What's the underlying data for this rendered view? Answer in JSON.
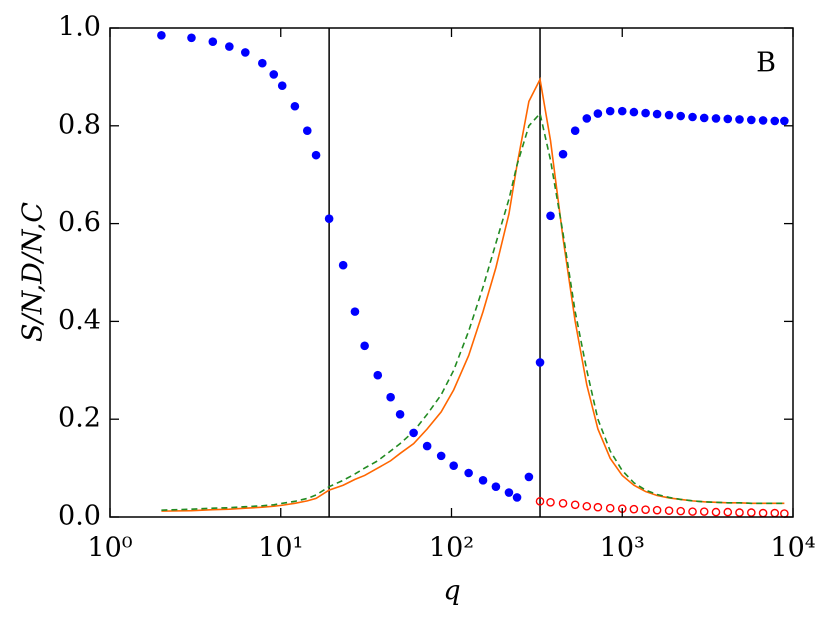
{
  "chart_data": {
    "type": "scatter",
    "annotation": "B",
    "xlabel": "q",
    "ylabel": "S/N,D/N,C",
    "xscale": "log",
    "xlim": [
      1,
      10000
    ],
    "ylim": [
      0,
      1
    ],
    "xticks": [
      {
        "value": 1,
        "label": "10⁰"
      },
      {
        "value": 10,
        "label": "10¹"
      },
      {
        "value": 100,
        "label": "10²"
      },
      {
        "value": 1000,
        "label": "10³"
      },
      {
        "value": 10000,
        "label": "10⁴"
      }
    ],
    "yticks": [
      {
        "value": 0,
        "label": "0.0"
      },
      0.2,
      0.4,
      0.6,
      0.8,
      {
        "value": 1,
        "label": "1.0"
      }
    ],
    "vlines": [
      19.2,
      330
    ],
    "x": [
      2,
      3,
      4,
      5,
      6.2,
      7.8,
      9.1,
      10.2,
      12.1,
      14.3,
      16.1,
      19.2,
      23.2,
      27.2,
      31,
      37,
      44,
      50,
      60,
      72,
      87,
      103,
      126,
      153,
      182,
      217,
      242,
      284,
      330,
      380,
      450,
      530,
      620,
      720,
      850,
      1000,
      1170,
      1370,
      1600,
      1880,
      2200,
      2580,
      3020,
      3540,
      4150,
      4860,
      5700,
      6680,
      7820,
      8900
    ],
    "series": [
      {
        "color": "#0000ff",
        "mode": "markers",
        "marker": "filled",
        "values": [
          0.985,
          0.98,
          0.972,
          0.962,
          0.95,
          0.928,
          0.905,
          0.882,
          0.84,
          0.79,
          0.74,
          0.61,
          0.515,
          0.42,
          0.35,
          0.29,
          0.245,
          0.21,
          0.172,
          0.145,
          0.125,
          0.105,
          0.09,
          0.075,
          0.062,
          0.05,
          0.04,
          0.082,
          0.316,
          0.616,
          0.742,
          0.79,
          0.815,
          0.825,
          0.83,
          0.83,
          0.828,
          0.826,
          0.824,
          0.822,
          0.82,
          0.818,
          0.816,
          0.815,
          0.814,
          0.813,
          0.812,
          0.811,
          0.81,
          0.81
        ]
      },
      {
        "color": "#ff0000",
        "mode": "markers",
        "marker": "open",
        "values": [
          null,
          null,
          null,
          null,
          null,
          null,
          null,
          null,
          null,
          null,
          null,
          null,
          null,
          null,
          null,
          null,
          null,
          null,
          null,
          null,
          null,
          null,
          null,
          null,
          null,
          null,
          null,
          null,
          0.032,
          0.03,
          0.028,
          0.025,
          0.022,
          0.02,
          0.018,
          0.017,
          0.016,
          0.015,
          0.014,
          0.013,
          0.012,
          0.011,
          0.011,
          0.01,
          0.01,
          0.009,
          0.009,
          0.008,
          0.008,
          0.007
        ]
      },
      {
        "color": "#ff6600",
        "mode": "line",
        "dash": false,
        "values": [
          0.012,
          0.013,
          0.015,
          0.016,
          0.018,
          0.02,
          0.022,
          0.024,
          0.028,
          0.033,
          0.038,
          0.055,
          0.065,
          0.077,
          0.085,
          0.1,
          0.115,
          0.13,
          0.15,
          0.18,
          0.215,
          0.26,
          0.33,
          0.42,
          0.51,
          0.62,
          0.72,
          0.85,
          0.895,
          0.77,
          0.57,
          0.4,
          0.27,
          0.18,
          0.12,
          0.085,
          0.065,
          0.052,
          0.044,
          0.039,
          0.036,
          0.033,
          0.031,
          0.03,
          0.029,
          0.029,
          0.028,
          0.028,
          0.028,
          0.028
        ]
      },
      {
        "color": "#228b22",
        "mode": "line",
        "dash": true,
        "values": [
          0.014,
          0.016,
          0.018,
          0.019,
          0.021,
          0.023,
          0.025,
          0.028,
          0.032,
          0.038,
          0.045,
          0.062,
          0.075,
          0.088,
          0.1,
          0.115,
          0.135,
          0.15,
          0.175,
          0.21,
          0.25,
          0.3,
          0.38,
          0.47,
          0.56,
          0.65,
          0.72,
          0.8,
          0.825,
          0.73,
          0.58,
          0.42,
          0.3,
          0.2,
          0.135,
          0.095,
          0.07,
          0.055,
          0.046,
          0.04,
          0.036,
          0.033,
          0.031,
          0.03,
          0.029,
          0.029,
          0.028,
          0.028,
          0.028,
          0.028
        ]
      }
    ]
  }
}
